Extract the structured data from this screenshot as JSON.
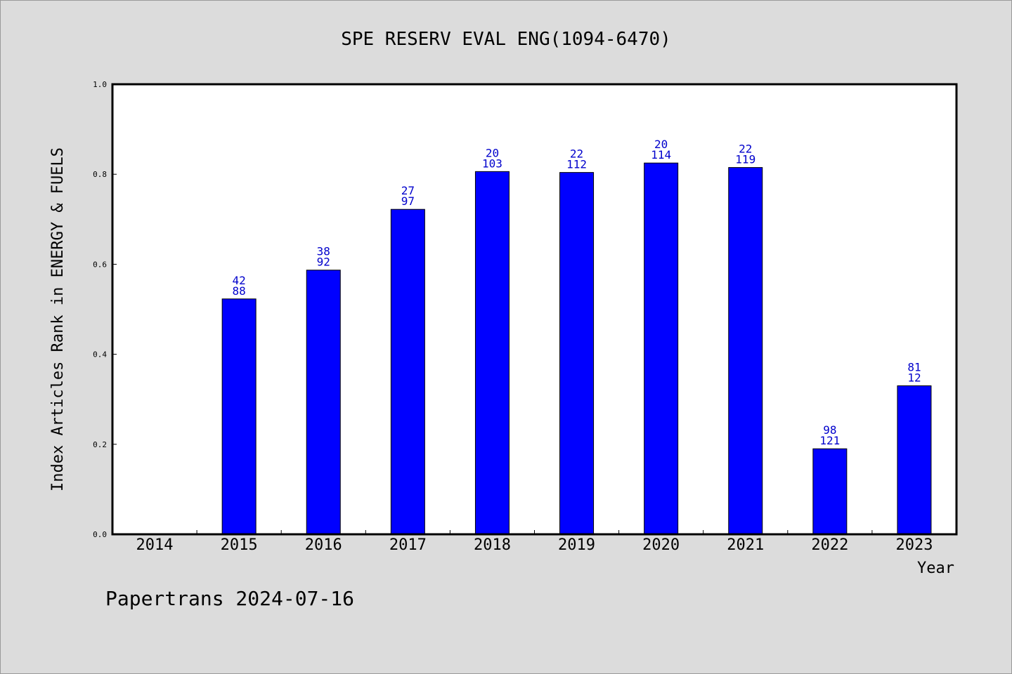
{
  "chart_data": {
    "type": "bar",
    "title": "SPE RESERV EVAL ENG(1094-6470)",
    "xlabel": "Year",
    "ylabel": "Index Articles Rank in ENERGY & FUELS",
    "ylim": [
      0,
      1.0
    ],
    "yticks": [
      "0.0",
      "0.2",
      "0.4",
      "0.6",
      "0.8",
      "1.0"
    ],
    "categories": [
      "2014",
      "2015",
      "2016",
      "2017",
      "2018",
      "2019",
      "2020",
      "2021",
      "2022",
      "2023"
    ],
    "values": [
      null,
      0.523,
      0.587,
      0.722,
      0.806,
      0.804,
      0.825,
      0.815,
      0.19,
      0.33
    ],
    "labels_top": [
      "",
      "42",
      "38",
      "27",
      "20",
      "22",
      "20",
      "22",
      "98",
      "81"
    ],
    "labels_bottom": [
      "",
      "88",
      "92",
      "97",
      "103",
      "112",
      "114",
      "119",
      "121",
      "12"
    ],
    "bar_color": "#0000ff",
    "label_color": "#0000cc",
    "grid": false
  },
  "footer": "Papertrans 2024-07-16"
}
